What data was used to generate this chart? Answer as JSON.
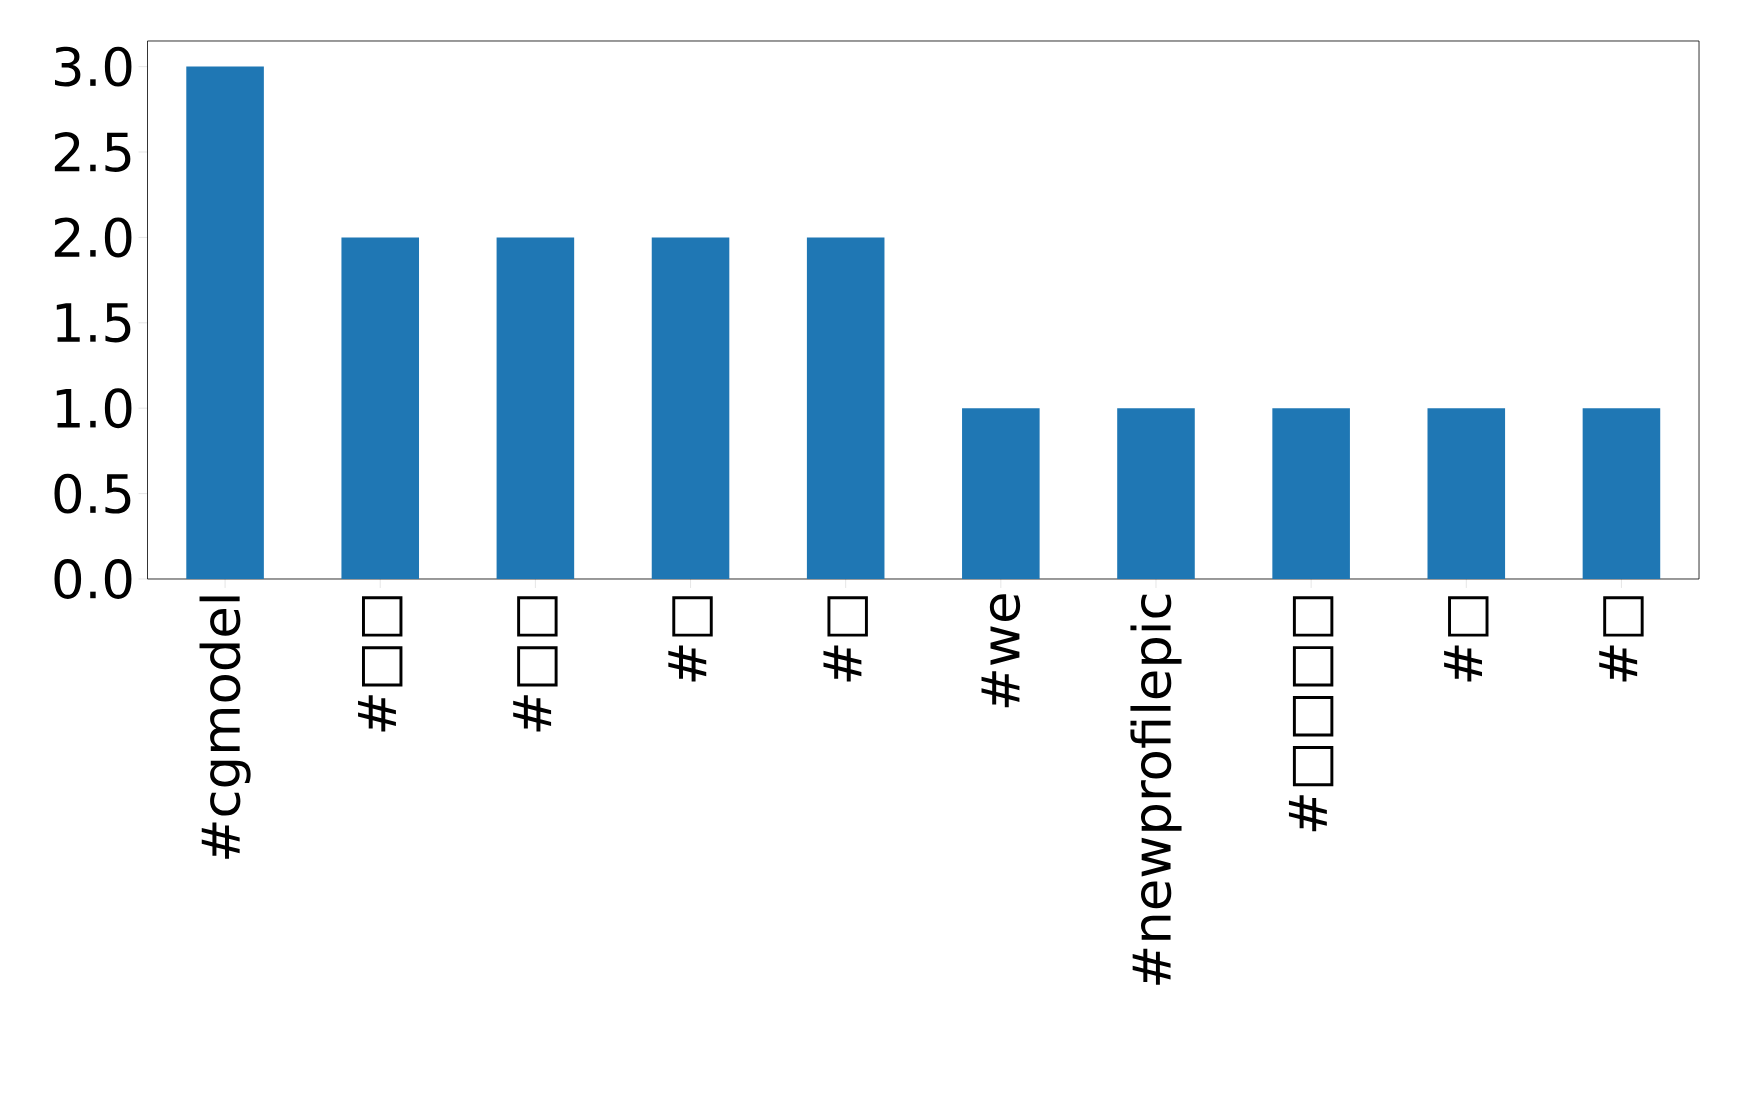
{
  "chart_data": {
    "type": "bar",
    "categories": [
      "#cgmodel",
      "#□□",
      "#□□",
      "#□",
      "#□",
      "#we",
      "#newprofilepic",
      "#□□□□",
      "#□",
      "#□"
    ],
    "values": [
      3,
      2,
      2,
      2,
      2,
      1,
      1,
      1,
      1,
      1
    ],
    "color": "#1f77b4",
    "ylim": [
      0,
      3.15
    ],
    "yticks": [
      {
        "value": 0,
        "label": "0.0"
      },
      {
        "value": 0.5,
        "label": "0.5"
      },
      {
        "value": 1,
        "label": "1.0"
      },
      {
        "value": 1.5,
        "label": "1.5"
      },
      {
        "value": 2,
        "label": "2.0"
      },
      {
        "value": 2.5,
        "label": "2.5"
      },
      {
        "value": 3,
        "label": "3.0"
      }
    ],
    "grid": false
  }
}
